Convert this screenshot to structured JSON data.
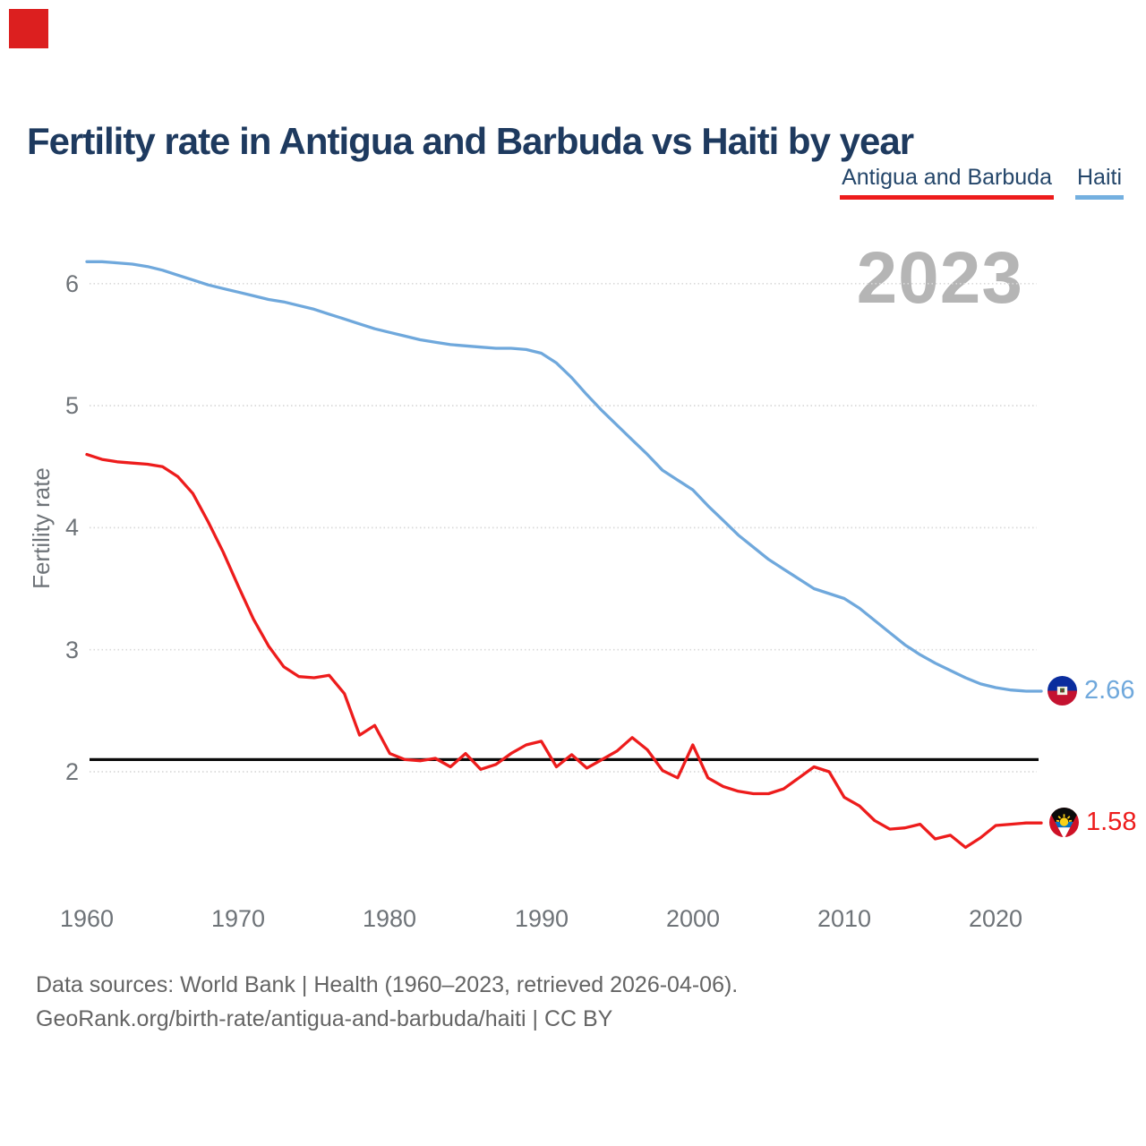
{
  "page": {
    "marker_color": "#dc1f1f"
  },
  "header": {
    "title": "Fertility rate in Antigua and Barbuda vs Haiti by year"
  },
  "legend": {
    "items": [
      {
        "label": "Antigua and Barbuda",
        "color": "#ed1c1c"
      },
      {
        "label": "Haiti",
        "color": "#74b0e0"
      }
    ]
  },
  "chart_data": {
    "type": "line",
    "title": "Fertility rate in Antigua and Barbuda vs Haiti by year",
    "ylabel": "Fertility rate",
    "xlabel": "",
    "watermark": "2023",
    "x_start": 1960,
    "x_end": 2023,
    "xticks": [
      1960,
      1970,
      1980,
      1990,
      2000,
      2010,
      2020
    ],
    "yticks": [
      2,
      3,
      4,
      5,
      6
    ],
    "ylim": [
      1.25,
      6.35
    ],
    "grid": "dotted",
    "legend_position": "top-right",
    "reference_line": {
      "value": 2.1,
      "color": "#0a0a0a"
    },
    "series": [
      {
        "name": "Antigua and Barbuda",
        "color": "#ed1c1c",
        "end_label": "1.58",
        "flag": "antigua-and-barbuda-flag",
        "values": [
          4.6,
          4.56,
          4.54,
          4.53,
          4.52,
          4.5,
          4.42,
          4.28,
          4.05,
          3.8,
          3.52,
          3.25,
          3.03,
          2.86,
          2.78,
          2.77,
          2.79,
          2.64,
          2.3,
          2.38,
          2.15,
          2.1,
          2.09,
          2.11,
          2.04,
          2.15,
          2.02,
          2.06,
          2.15,
          2.22,
          2.25,
          2.04,
          2.14,
          2.03,
          2.1,
          2.17,
          2.28,
          2.18,
          2.01,
          1.95,
          2.22,
          1.95,
          1.88,
          1.84,
          1.82,
          1.82,
          1.86,
          1.95,
          2.04,
          2.0,
          1.79,
          1.72,
          1.6,
          1.53,
          1.54,
          1.57,
          1.45,
          1.48,
          1.38,
          1.46,
          1.56,
          1.57,
          1.58,
          1.58
        ]
      },
      {
        "name": "Haiti",
        "color": "#6fa8dc",
        "end_label": "2.66",
        "flag": "haiti-flag",
        "values": [
          6.18,
          6.18,
          6.17,
          6.16,
          6.14,
          6.11,
          6.07,
          6.03,
          5.99,
          5.96,
          5.93,
          5.9,
          5.87,
          5.85,
          5.82,
          5.79,
          5.75,
          5.71,
          5.67,
          5.63,
          5.6,
          5.57,
          5.54,
          5.52,
          5.5,
          5.49,
          5.48,
          5.47,
          5.47,
          5.46,
          5.43,
          5.35,
          5.23,
          5.09,
          4.96,
          4.84,
          4.72,
          4.6,
          4.47,
          4.39,
          4.31,
          4.18,
          4.06,
          3.94,
          3.84,
          3.74,
          3.66,
          3.58,
          3.5,
          3.46,
          3.42,
          3.34,
          3.24,
          3.14,
          3.04,
          2.96,
          2.89,
          2.83,
          2.77,
          2.72,
          2.69,
          2.67,
          2.66,
          2.66
        ]
      }
    ]
  },
  "footer": {
    "line1": "Data sources: World Bank | Health (1960–2023, retrieved 2026-04-06).",
    "line2": "GeoRank.org/birth-rate/antigua-and-barbuda/haiti | CC BY"
  }
}
